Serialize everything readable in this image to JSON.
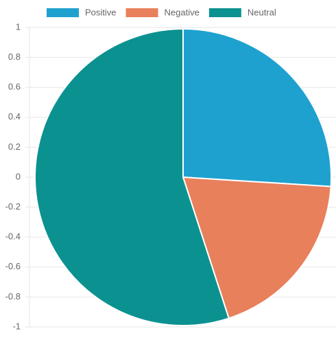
{
  "chart_data": {
    "type": "pie",
    "categories": [
      "Positive",
      "Negative",
      "Neutral"
    ],
    "values": [
      26,
      19,
      55
    ],
    "colors": [
      "#1ea1cf",
      "#e8805c",
      "#0c9191"
    ],
    "ylim": [
      -1,
      1
    ],
    "yticks": [
      -1,
      -0.8,
      -0.6,
      -0.4,
      -0.2,
      0,
      0.2,
      0.4,
      0.6,
      0.8,
      1
    ],
    "grid": true,
    "legend": "top"
  }
}
